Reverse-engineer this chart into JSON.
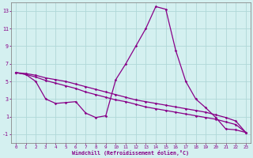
{
  "xlabel": "Windchill (Refroidissement éolien,°C)",
  "xlim": [
    -0.5,
    23.5
  ],
  "ylim": [
    -2,
    14
  ],
  "yticks": [
    -1,
    1,
    3,
    5,
    7,
    9,
    11,
    13
  ],
  "xticks": [
    0,
    1,
    2,
    3,
    4,
    5,
    6,
    7,
    8,
    9,
    10,
    11,
    12,
    13,
    14,
    15,
    16,
    17,
    18,
    19,
    20,
    21,
    22,
    23
  ],
  "bg_color": "#d4f0f0",
  "line_color": "#880088",
  "grid_color": "#b0d8d8",
  "line1_x": [
    0,
    1,
    2,
    3,
    4,
    5,
    6,
    7,
    8,
    9,
    10,
    11,
    12,
    13,
    14,
    15,
    16,
    17,
    18,
    19,
    20,
    21,
    22,
    23
  ],
  "line1_y": [
    6.0,
    5.8,
    5.0,
    3.0,
    2.5,
    2.6,
    2.7,
    1.4,
    0.9,
    1.1,
    5.2,
    7.0,
    9.0,
    11.0,
    13.5,
    13.2,
    8.5,
    5.0,
    3.0,
    2.0,
    0.9,
    -0.4,
    -0.5,
    -0.8
  ],
  "line2_x": [
    0,
    1,
    2,
    3,
    4,
    5,
    6,
    7,
    8,
    9,
    10,
    11,
    12,
    13,
    14,
    15,
    16,
    17,
    18,
    19,
    20,
    21,
    22,
    23
  ],
  "line2_y": [
    6.0,
    5.9,
    5.7,
    5.4,
    5.2,
    5.0,
    4.7,
    4.4,
    4.1,
    3.8,
    3.5,
    3.2,
    2.9,
    2.7,
    2.5,
    2.3,
    2.1,
    1.9,
    1.7,
    1.5,
    1.2,
    0.9,
    0.5,
    -0.8
  ],
  "line3_x": [
    0,
    1,
    2,
    3,
    4,
    5,
    6,
    7,
    8,
    9,
    10,
    11,
    12,
    13,
    14,
    15,
    16,
    17,
    18,
    19,
    20,
    21,
    22,
    23
  ],
  "line3_y": [
    6.0,
    5.8,
    5.5,
    5.1,
    4.8,
    4.5,
    4.2,
    3.8,
    3.5,
    3.2,
    2.9,
    2.7,
    2.4,
    2.1,
    1.9,
    1.7,
    1.5,
    1.3,
    1.1,
    0.9,
    0.7,
    0.4,
    0.1,
    -0.8
  ]
}
